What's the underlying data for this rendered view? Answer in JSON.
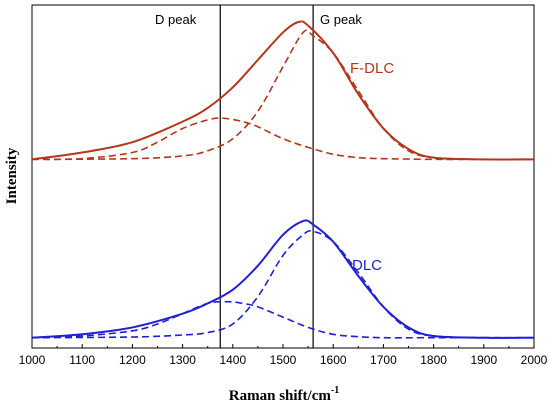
{
  "chart_data": {
    "type": "line",
    "title": "",
    "xlabel": "Raman shift/cm",
    "xlabel_superscript": "-1",
    "ylabel": "Intensity",
    "xlim": [
      1000,
      2000
    ],
    "ylim": [
      0,
      1
    ],
    "x_ticks": [
      "1000",
      "1100",
      "1200",
      "1300",
      "1400",
      "1500",
      "1600",
      "1700",
      "1800",
      "1900",
      "2000"
    ],
    "grid": false,
    "legend": "none",
    "peak_markers": [
      {
        "label": "D peak",
        "x": 1375
      },
      {
        "label": "G peak",
        "x": 1560
      }
    ],
    "series_labels": [
      {
        "text": "F-DLC",
        "color": "#b5361c"
      },
      {
        "text": "DLC",
        "color": "#1f1fd6"
      }
    ],
    "series": [
      {
        "group": "F-DLC",
        "style": "solid",
        "color": "#b5361c",
        "x": [
          1000,
          1100,
          1200,
          1300,
          1350,
          1400,
          1450,
          1500,
          1530,
          1550,
          1600,
          1650,
          1700,
          1750,
          1800,
          1900,
          2000
        ],
        "values": [
          0.55,
          0.57,
          0.6,
          0.66,
          0.7,
          0.76,
          0.84,
          0.92,
          0.95,
          0.94,
          0.86,
          0.74,
          0.64,
          0.58,
          0.555,
          0.55,
          0.55
        ]
      },
      {
        "group": "F-DLC",
        "style": "dashed",
        "color": "#b5361c",
        "x": [
          1000,
          1100,
          1200,
          1250,
          1300,
          1350,
          1380,
          1420,
          1450,
          1500,
          1550,
          1600,
          1650,
          1700,
          1800,
          1900,
          2000
        ],
        "values": [
          0.55,
          0.552,
          0.57,
          0.6,
          0.64,
          0.665,
          0.67,
          0.66,
          0.645,
          0.61,
          0.585,
          0.565,
          0.555,
          0.552,
          0.55,
          0.55,
          0.55
        ]
      },
      {
        "group": "F-DLC",
        "style": "dashed",
        "color": "#b5361c",
        "x": [
          1000,
          1200,
          1300,
          1350,
          1400,
          1450,
          1500,
          1540,
          1560,
          1600,
          1650,
          1700,
          1750,
          1800,
          1900,
          2000
        ],
        "values": [
          0.55,
          0.552,
          0.56,
          0.575,
          0.61,
          0.69,
          0.82,
          0.92,
          0.91,
          0.86,
          0.75,
          0.64,
          0.575,
          0.555,
          0.55,
          0.55
        ]
      },
      {
        "group": "DLC",
        "style": "solid",
        "color": "#1f1fd6",
        "x": [
          1000,
          1100,
          1200,
          1300,
          1350,
          1400,
          1450,
          1500,
          1540,
          1560,
          1600,
          1650,
          1700,
          1750,
          1800,
          1900,
          2000
        ],
        "values": [
          0.03,
          0.04,
          0.06,
          0.1,
          0.13,
          0.17,
          0.24,
          0.33,
          0.37,
          0.36,
          0.31,
          0.21,
          0.12,
          0.06,
          0.035,
          0.03,
          0.03
        ]
      },
      {
        "group": "DLC",
        "style": "dashed",
        "color": "#1f1fd6",
        "x": [
          1000,
          1100,
          1200,
          1250,
          1300,
          1350,
          1390,
          1420,
          1450,
          1500,
          1550,
          1600,
          1650,
          1700,
          1800,
          1900,
          2000
        ],
        "values": [
          0.03,
          0.035,
          0.05,
          0.07,
          0.1,
          0.13,
          0.135,
          0.13,
          0.12,
          0.09,
          0.06,
          0.04,
          0.033,
          0.03,
          0.03,
          0.03,
          0.03
        ]
      },
      {
        "group": "DLC",
        "style": "dashed",
        "color": "#1f1fd6",
        "x": [
          1000,
          1200,
          1300,
          1350,
          1400,
          1450,
          1500,
          1540,
          1560,
          1600,
          1650,
          1700,
          1750,
          1800,
          1900,
          2000
        ],
        "values": [
          0.03,
          0.032,
          0.038,
          0.045,
          0.07,
          0.15,
          0.27,
          0.33,
          0.34,
          0.31,
          0.22,
          0.12,
          0.055,
          0.035,
          0.03,
          0.03
        ]
      }
    ]
  }
}
